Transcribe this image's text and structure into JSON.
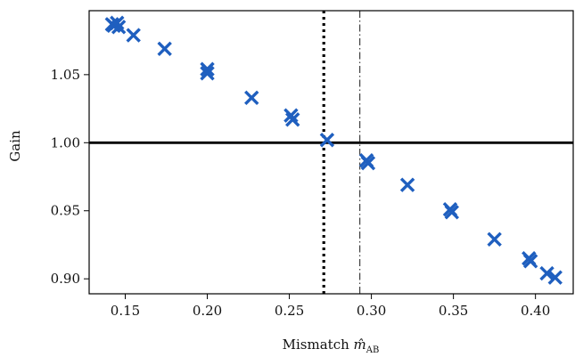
{
  "chart_data": {
    "type": "scatter",
    "xlabel": "Mismatch",
    "xlabel_symbol": "m̂",
    "xlabel_subscript": "AB",
    "ylabel": "Gain",
    "xlim": [
      0.128,
      0.423
    ],
    "ylim": [
      0.889,
      1.097
    ],
    "xticks": [
      0.15,
      0.2,
      0.25,
      0.3,
      0.35,
      0.4
    ],
    "xtick_labels": [
      "0.15",
      "0.20",
      "0.25",
      "0.30",
      "0.35",
      "0.40"
    ],
    "yticks": [
      0.9,
      0.95,
      1.0,
      1.05
    ],
    "ytick_labels": [
      "0.90",
      "0.95",
      "1.00",
      "1.05"
    ],
    "grid": false,
    "marker": "x",
    "marker_color": "#1f5fbf",
    "series": [
      {
        "x": [
          0.142,
          0.143,
          0.145,
          0.146,
          0.155,
          0.174,
          0.2,
          0.2,
          0.227,
          0.251,
          0.252,
          0.273,
          0.297,
          0.298,
          0.322,
          0.348,
          0.349,
          0.375,
          0.396,
          0.397,
          0.407,
          0.412
        ],
        "y": [
          1.087,
          1.086,
          1.088,
          1.085,
          1.079,
          1.069,
          1.054,
          1.051,
          1.033,
          1.02,
          1.017,
          1.002,
          0.987,
          0.985,
          0.969,
          0.951,
          0.949,
          0.929,
          0.915,
          0.913,
          0.904,
          0.901
        ]
      }
    ],
    "reference_lines": [
      {
        "orientation": "horizontal",
        "value": 1.0,
        "style": "solid"
      },
      {
        "orientation": "vertical",
        "value": 0.271,
        "style": "dotted"
      },
      {
        "orientation": "vertical",
        "value": 0.293,
        "style": "dashdot"
      }
    ]
  }
}
